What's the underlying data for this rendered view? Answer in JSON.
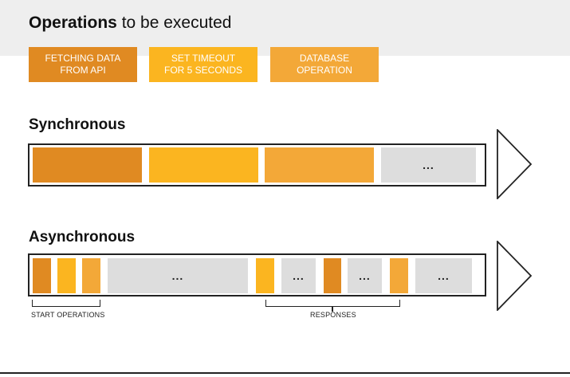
{
  "colors": {
    "fetch": "#e08a22",
    "timeout": "#fbb520",
    "database": "#f3a838",
    "pending": "#dddddd"
  },
  "header": {
    "title_bold": "Operations",
    "title_rest": " to be executed"
  },
  "operations": [
    {
      "line1": "FETCHING DATA",
      "line2": "FROM API"
    },
    {
      "line1": "SET TIMEOUT",
      "line2": "FOR 5 SECONDS"
    },
    {
      "line1": "DATABASE",
      "line2": "OPERATION"
    }
  ],
  "synchronous": {
    "title": "Synchronous",
    "ellipsis": "..."
  },
  "asynchronous": {
    "title": "Asynchronous",
    "ellipsis": "...",
    "start_label": "START OPERATIONS",
    "responses_label": "RESPONSES"
  }
}
